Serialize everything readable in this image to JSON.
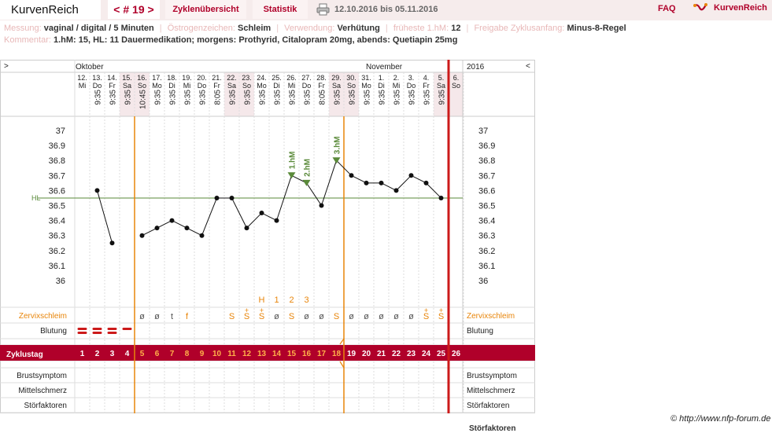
{
  "header": {
    "brand": "KurvenReich",
    "cycle_nav": "< # 19 >",
    "tabs": [
      "Zyklenübersicht",
      "Statistik"
    ],
    "date_range": "12.10.2016 bis 05.11.2016",
    "faq": "FAQ",
    "logo_text": "KurvenReich"
  },
  "info": {
    "messung_label": "Messung:",
    "messung_value": "vaginal / digital / 5 Minuten",
    "oestrogen_label": "Östrogenzeichen:",
    "oestrogen_value": "Schleim",
    "verwendung_label": "Verwendung:",
    "verwendung_value": "Verhütung",
    "frueheste_label": "früheste 1.hM:",
    "frueheste_value": "12",
    "freigabe_label": "Freigabe Zyklusanfang:",
    "freigabe_value": "Minus-8-Regel",
    "kommentar_label": "Kommentar:",
    "kommentar_value": "1.hM: 15, HL: 11 Dauermedikation; morgens: Prothyrid, Citalopram 20mg, abends: Quetiapin 25mg"
  },
  "chart": {
    "nav_left": ">",
    "nav_right": "<",
    "month_oct": "Oktober",
    "month_nov": "November",
    "year": "2016",
    "hl_label": "HL",
    "rows": {
      "zervix": "Zervixschleim",
      "blutung": "Blutung",
      "zyklustag": "Zyklustag",
      "brust": "Brustsymptom",
      "mittel": "Mittelschmerz",
      "stoer": "Störfaktoren"
    },
    "peak_labels": {
      "H": "H",
      "1": "1",
      "2": "2",
      "3": "3"
    },
    "hm_labels": [
      "1.hM",
      "2.hM",
      "3.hM"
    ]
  },
  "chart_data": {
    "type": "line",
    "y_ticks": [
      "37",
      "36.9",
      "36.8",
      "36.7",
      "36.6",
      "36.5",
      "36.4",
      "36.3",
      "36.2",
      "36.1",
      "36"
    ],
    "ylim": [
      36.0,
      37.0
    ],
    "cover_line": 36.55,
    "days": [
      {
        "date": "12.",
        "dow": "Mi",
        "time": "",
        "temp": null,
        "mucus": "",
        "blood": "",
        "cd": "1"
      },
      {
        "date": "13.",
        "dow": "Do",
        "time": "9:35",
        "temp": 36.6,
        "mucus": "",
        "blood": "",
        "cd": "2"
      },
      {
        "date": "14.",
        "dow": "Fr",
        "time": "9:35",
        "temp": 36.25,
        "mucus": "",
        "blood": "",
        "cd": "3"
      },
      {
        "date": "15.",
        "dow": "Sa",
        "time": "9:35",
        "temp": null,
        "mucus": "",
        "blood": "",
        "cd": "4"
      },
      {
        "date": "16.",
        "dow": "So",
        "time": "10:45",
        "temp": 36.3,
        "mucus": "ø",
        "blood": "",
        "cd": "5"
      },
      {
        "date": "17.",
        "dow": "Mo",
        "time": "9:35",
        "temp": 36.35,
        "mucus": "ø",
        "blood": "",
        "cd": "6"
      },
      {
        "date": "18.",
        "dow": "Di",
        "time": "9:35",
        "temp": 36.4,
        "mucus": "t",
        "blood": "",
        "cd": "7"
      },
      {
        "date": "19.",
        "dow": "Mi",
        "time": "9:35",
        "temp": 36.35,
        "mucus": "f",
        "blood": "",
        "cd": "8"
      },
      {
        "date": "20.",
        "dow": "Do",
        "time": "9:35",
        "temp": 36.3,
        "mucus": "",
        "blood": "",
        "cd": "9"
      },
      {
        "date": "21.",
        "dow": "Fr",
        "time": "8:05",
        "temp": 36.55,
        "mucus": "",
        "blood": "",
        "cd": "10"
      },
      {
        "date": "22.",
        "dow": "Sa",
        "time": "9:35",
        "temp": 36.55,
        "mucus": "S",
        "blood": "",
        "cd": "11"
      },
      {
        "date": "23.",
        "dow": "So",
        "time": "9:35",
        "temp": 36.35,
        "mucus": "S+",
        "blood": "",
        "cd": "12"
      },
      {
        "date": "24.",
        "dow": "Mo",
        "time": "9:35",
        "temp": 36.45,
        "mucus": "S+",
        "blood": "",
        "cd": "13"
      },
      {
        "date": "25.",
        "dow": "Di",
        "time": "9:35",
        "temp": 36.4,
        "mucus": "ø",
        "blood": "",
        "cd": "14"
      },
      {
        "date": "26.",
        "dow": "Mi",
        "time": "9:35",
        "temp": 36.7,
        "mucus": "S",
        "blood": "",
        "cd": "15"
      },
      {
        "date": "27.",
        "dow": "Do",
        "time": "9:35",
        "temp": 36.65,
        "mucus": "ø",
        "blood": "",
        "cd": "16"
      },
      {
        "date": "28.",
        "dow": "Fr",
        "time": "8:05",
        "temp": 36.5,
        "mucus": "ø",
        "blood": "",
        "cd": "17"
      },
      {
        "date": "29.",
        "dow": "Sa",
        "time": "9:35",
        "temp": 36.8,
        "mucus": "S",
        "blood": "",
        "cd": "18"
      },
      {
        "date": "30.",
        "dow": "So",
        "time": "9:35",
        "temp": 36.7,
        "mucus": "ø",
        "blood": "",
        "cd": "19"
      },
      {
        "date": "31.",
        "dow": "Mo",
        "time": "9:35",
        "temp": 36.65,
        "mucus": "ø",
        "blood": "",
        "cd": "20"
      },
      {
        "date": "1.",
        "dow": "Di",
        "time": "9:35",
        "temp": 36.65,
        "mucus": "ø",
        "blood": "",
        "cd": "21"
      },
      {
        "date": "2.",
        "dow": "Mi",
        "time": "9:35",
        "temp": 36.6,
        "mucus": "ø",
        "blood": "",
        "cd": "22"
      },
      {
        "date": "3.",
        "dow": "Do",
        "time": "9:35",
        "temp": 36.7,
        "mucus": "ø",
        "blood": "",
        "cd": "23"
      },
      {
        "date": "4.",
        "dow": "Fr",
        "time": "9:35",
        "temp": 36.65,
        "mucus": "S+",
        "blood": "",
        "cd": "24"
      },
      {
        "date": "5.",
        "dow": "Sa",
        "time": "9:35",
        "temp": 36.55,
        "mucus": "S+",
        "blood": "",
        "cd": "25"
      },
      {
        "date": "6.",
        "dow": "So",
        "time": "",
        "temp": null,
        "mucus": "",
        "blood": "",
        "cd": "26"
      }
    ],
    "bleeding_days": [
      1,
      2,
      3,
      4
    ],
    "peak_day_labels": [
      {
        "label": "H",
        "day": 13
      },
      {
        "label": "1",
        "day": 14
      },
      {
        "label": "2",
        "day": 15
      },
      {
        "label": "3",
        "day": 16
      }
    ],
    "hm_markers": [
      {
        "label": "1.hM",
        "day": 15
      },
      {
        "label": "2.hM",
        "day": 16
      },
      {
        "label": "3.hM",
        "day": 18
      }
    ],
    "orange_vlines_after_day": [
      4,
      18
    ],
    "red_vline_after_day": 25
  },
  "footer": {
    "copyright": "© http://www.nfp-forum.de",
    "cutoff_text": "Störfaktoren"
  },
  "colors": {
    "accent": "#b0002a",
    "orange": "#e8850a",
    "green": "#5a8a3a",
    "weekend": "#f5e8ea"
  }
}
